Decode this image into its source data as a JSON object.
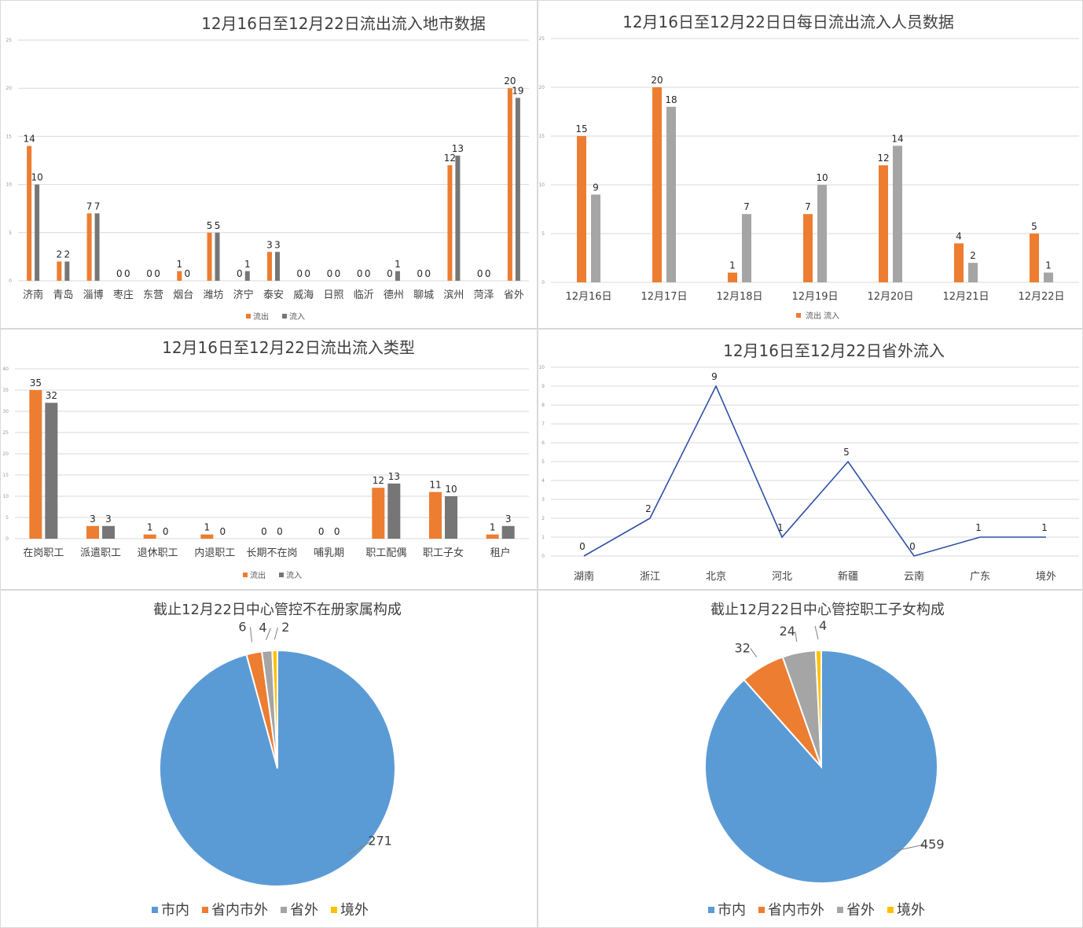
{
  "colors": {
    "orange": "#ED7D31",
    "gray_dark": "#767676",
    "gray": "#A5A5A5",
    "blue": "#5B9BD5",
    "yellow": "#FFC000",
    "line": "#2F4FA8",
    "grid": "#D9D9D9"
  },
  "chart_data": [
    {
      "id": "city",
      "type": "bar",
      "title": "12月16日至12月22日流出流入地市数据",
      "categories": [
        "济南",
        "青岛",
        "淄博",
        "枣庄",
        "东营",
        "烟台",
        "潍坊",
        "济宁",
        "泰安",
        "威海",
        "日照",
        "临沂",
        "德州",
        "聊城",
        "滨州",
        "菏泽",
        "省外"
      ],
      "series": [
        {
          "name": "流出",
          "values": [
            14,
            2,
            7,
            0,
            0,
            1,
            5,
            0,
            3,
            0,
            0,
            0,
            0,
            0,
            12,
            0,
            20
          ]
        },
        {
          "name": "流入",
          "values": [
            10,
            2,
            7,
            0,
            0,
            0,
            5,
            1,
            3,
            0,
            0,
            0,
            1,
            0,
            13,
            0,
            19
          ]
        }
      ],
      "ylim": [
        0,
        25
      ]
    },
    {
      "id": "daily",
      "type": "bar",
      "title": "12月16日至12月22日日每日流出流入人员数据",
      "categories": [
        "12月16日",
        "12月17日",
        "12月18日",
        "12月19日",
        "12月20日",
        "12月21日",
        "12月22日"
      ],
      "series": [
        {
          "name": "流出",
          "values": [
            15,
            20,
            1,
            7,
            12,
            4,
            5
          ]
        },
        {
          "name": "流入",
          "values": [
            9,
            18,
            7,
            10,
            14,
            2,
            1
          ]
        }
      ],
      "legend_text": "流出 流入",
      "ylim": [
        0,
        25
      ]
    },
    {
      "id": "types",
      "type": "bar",
      "title": "12月16日至12月22日流出流入类型",
      "categories": [
        "在岗职工",
        "派遣职工",
        "退休职工",
        "内退职工",
        "长期不在岗",
        "哺乳期",
        "职工配偶",
        "职工子女",
        "租户"
      ],
      "series": [
        {
          "name": "流出",
          "values": [
            35,
            3,
            1,
            1,
            0,
            0,
            12,
            11,
            1
          ]
        },
        {
          "name": "流入",
          "values": [
            32,
            3,
            0,
            0,
            0,
            0,
            13,
            10,
            3
          ]
        }
      ],
      "ylim": [
        0,
        40
      ]
    },
    {
      "id": "outside",
      "type": "line",
      "title": "12月16日至12月22日省外流入",
      "categories": [
        "湖南",
        "浙江",
        "北京",
        "河北",
        "新疆",
        "云南",
        "广东",
        "境外"
      ],
      "series": [
        {
          "name": "省外流入",
          "values": [
            0,
            2,
            9,
            1,
            5,
            0,
            1,
            1
          ]
        }
      ],
      "ylim": [
        0,
        10
      ]
    },
    {
      "id": "pie_family",
      "type": "pie",
      "title": "截止12月22日中心管控不在册家属构成",
      "categories": [
        "市内",
        "省内市外",
        "省外",
        "境外"
      ],
      "values": [
        271,
        6,
        4,
        2
      ]
    },
    {
      "id": "pie_children",
      "type": "pie",
      "title": "截止12月22日中心管控职工子女构成",
      "categories": [
        "市内",
        "省内市外",
        "省外",
        "境外"
      ],
      "values": [
        459,
        32,
        24,
        4
      ]
    }
  ]
}
